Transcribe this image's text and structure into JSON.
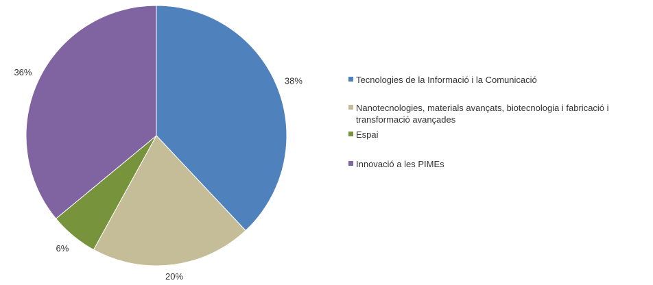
{
  "chart_data": {
    "type": "pie",
    "categories": [
      "Tecnologies de la Informació i la Comunicació",
      "Nanotecnologies, materials avançats, biotecnologia i fabricació i transformació avançades",
      "Espai",
      "Innovació a les PIMEs"
    ],
    "values": [
      38,
      20,
      6,
      36
    ],
    "value_labels": [
      "38%",
      "20%",
      "6%",
      "36%"
    ],
    "colors": [
      "#4f81bd",
      "#c4bd97",
      "#77933c",
      "#8064a2"
    ],
    "legend": "right"
  }
}
